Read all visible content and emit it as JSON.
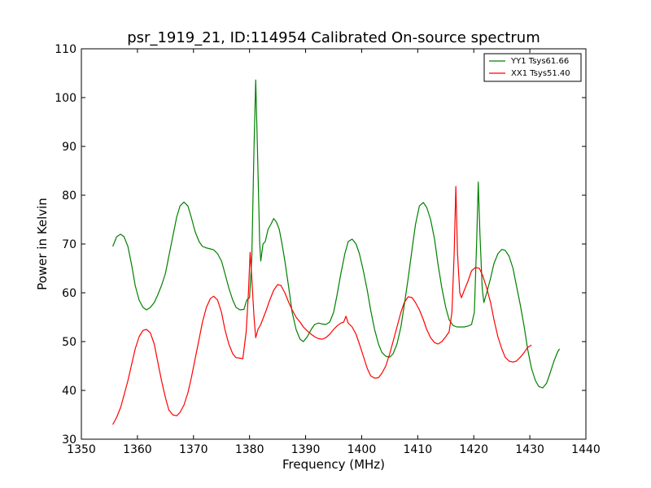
{
  "chart_data": {
    "type": "line",
    "title": "psr_1919_21, ID:114954 Calibrated On-source spectrum",
    "xlabel": "Frequency (MHz)",
    "ylabel": "Power in Kelvin",
    "xlim": [
      1350,
      1440
    ],
    "ylim": [
      30,
      110
    ],
    "xticks": [
      "1350",
      "1360",
      "1370",
      "1380",
      "1390",
      "1400",
      "1410",
      "1420",
      "1430",
      "1440"
    ],
    "yticks": [
      "30",
      "40",
      "50",
      "60",
      "70",
      "80",
      "90",
      "100",
      "110"
    ],
    "grid": false,
    "legend_position": "top-right",
    "series": [
      {
        "name": "YY1 Tsys61.66",
        "color": "#008000",
        "points": [
          [
            1355.6,
            69.5
          ],
          [
            1356.3,
            71.5
          ],
          [
            1357.0,
            72.0
          ],
          [
            1357.6,
            71.5
          ],
          [
            1358.3,
            69.5
          ],
          [
            1359.0,
            65.5
          ],
          [
            1359.6,
            61.5
          ],
          [
            1360.3,
            58.5
          ],
          [
            1361.0,
            57.0
          ],
          [
            1361.6,
            56.5
          ],
          [
            1362.3,
            57.0
          ],
          [
            1363.0,
            58.0
          ],
          [
            1363.6,
            59.5
          ],
          [
            1364.3,
            61.5
          ],
          [
            1365.0,
            64.0
          ],
          [
            1365.6,
            67.5
          ],
          [
            1366.3,
            71.5
          ],
          [
            1367.0,
            75.5
          ],
          [
            1367.6,
            77.8
          ],
          [
            1368.3,
            78.6
          ],
          [
            1369.0,
            77.8
          ],
          [
            1369.6,
            75.5
          ],
          [
            1370.3,
            72.5
          ],
          [
            1371.0,
            70.5
          ],
          [
            1371.6,
            69.5
          ],
          [
            1372.3,
            69.2
          ],
          [
            1373.0,
            69.0
          ],
          [
            1373.6,
            68.8
          ],
          [
            1374.3,
            68.0
          ],
          [
            1375.0,
            66.5
          ],
          [
            1375.6,
            64.0
          ],
          [
            1376.3,
            61.0
          ],
          [
            1377.0,
            58.5
          ],
          [
            1377.6,
            57.0
          ],
          [
            1378.3,
            56.5
          ],
          [
            1379.0,
            56.6
          ],
          [
            1379.5,
            58.5
          ],
          [
            1380.0,
            59.0
          ],
          [
            1380.4,
            67.0
          ],
          [
            1380.8,
            90.0
          ],
          [
            1381.1,
            103.6
          ],
          [
            1381.4,
            90.0
          ],
          [
            1381.8,
            70.5
          ],
          [
            1382.0,
            66.5
          ],
          [
            1382.4,
            70.0
          ],
          [
            1382.8,
            70.5
          ],
          [
            1383.3,
            73.0
          ],
          [
            1383.8,
            74.0
          ],
          [
            1384.3,
            75.2
          ],
          [
            1384.8,
            74.5
          ],
          [
            1385.3,
            73.0
          ],
          [
            1385.8,
            70.0
          ],
          [
            1386.3,
            66.5
          ],
          [
            1387.0,
            61.0
          ],
          [
            1387.6,
            56.0
          ],
          [
            1388.3,
            52.5
          ],
          [
            1389.0,
            50.5
          ],
          [
            1389.6,
            50.0
          ],
          [
            1390.3,
            51.0
          ],
          [
            1391.0,
            52.5
          ],
          [
            1391.6,
            53.5
          ],
          [
            1392.3,
            53.8
          ],
          [
            1393.0,
            53.6
          ],
          [
            1393.6,
            53.5
          ],
          [
            1394.3,
            54.0
          ],
          [
            1395.0,
            56.0
          ],
          [
            1395.6,
            59.5
          ],
          [
            1396.3,
            64.0
          ],
          [
            1397.0,
            68.0
          ],
          [
            1397.6,
            70.5
          ],
          [
            1398.3,
            71.0
          ],
          [
            1399.0,
            70.0
          ],
          [
            1399.6,
            68.0
          ],
          [
            1400.3,
            64.5
          ],
          [
            1401.0,
            60.5
          ],
          [
            1401.6,
            56.5
          ],
          [
            1402.3,
            52.5
          ],
          [
            1403.0,
            49.5
          ],
          [
            1403.6,
            47.8
          ],
          [
            1404.3,
            47.0
          ],
          [
            1405.0,
            46.8
          ],
          [
            1405.6,
            47.5
          ],
          [
            1406.3,
            49.5
          ],
          [
            1407.0,
            53.0
          ],
          [
            1407.6,
            57.5
          ],
          [
            1408.3,
            63.0
          ],
          [
            1409.0,
            69.0
          ],
          [
            1409.6,
            74.0
          ],
          [
            1410.3,
            77.8
          ],
          [
            1411.0,
            78.5
          ],
          [
            1411.6,
            77.5
          ],
          [
            1412.3,
            75.0
          ],
          [
            1413.0,
            71.0
          ],
          [
            1413.6,
            66.0
          ],
          [
            1414.3,
            61.0
          ],
          [
            1415.0,
            57.0
          ],
          [
            1415.6,
            54.5
          ],
          [
            1416.3,
            53.3
          ],
          [
            1417.0,
            53.0
          ],
          [
            1417.6,
            53.0
          ],
          [
            1418.3,
            53.0
          ],
          [
            1419.0,
            53.2
          ],
          [
            1419.6,
            53.5
          ],
          [
            1420.1,
            56.0
          ],
          [
            1420.5,
            70.0
          ],
          [
            1420.8,
            82.7
          ],
          [
            1421.1,
            72.0
          ],
          [
            1421.5,
            61.0
          ],
          [
            1421.8,
            58.0
          ],
          [
            1422.3,
            60.0
          ],
          [
            1423.0,
            63.0
          ],
          [
            1423.6,
            66.0
          ],
          [
            1424.3,
            68.0
          ],
          [
            1425.0,
            68.9
          ],
          [
            1425.6,
            68.7
          ],
          [
            1426.3,
            67.5
          ],
          [
            1427.0,
            65.0
          ],
          [
            1427.6,
            61.5
          ],
          [
            1428.3,
            57.5
          ],
          [
            1429.0,
            53.0
          ],
          [
            1429.6,
            48.5
          ],
          [
            1430.3,
            44.5
          ],
          [
            1431.0,
            42.0
          ],
          [
            1431.6,
            40.8
          ],
          [
            1432.3,
            40.5
          ],
          [
            1433.0,
            41.5
          ],
          [
            1433.6,
            43.5
          ],
          [
            1434.3,
            46.0
          ],
          [
            1435.0,
            48.0
          ],
          [
            1435.3,
            48.5
          ]
        ]
      },
      {
        "name": "XX1 Tsys51.40",
        "color": "#ff0000",
        "points": [
          [
            1355.6,
            33.0
          ],
          [
            1356.3,
            34.5
          ],
          [
            1357.0,
            36.5
          ],
          [
            1357.6,
            39.0
          ],
          [
            1358.3,
            42.0
          ],
          [
            1359.0,
            45.5
          ],
          [
            1359.6,
            48.5
          ],
          [
            1360.3,
            51.0
          ],
          [
            1361.0,
            52.3
          ],
          [
            1361.6,
            52.5
          ],
          [
            1362.3,
            51.8
          ],
          [
            1363.0,
            49.5
          ],
          [
            1363.6,
            46.0
          ],
          [
            1364.3,
            42.0
          ],
          [
            1365.0,
            38.5
          ],
          [
            1365.6,
            36.0
          ],
          [
            1366.3,
            35.0
          ],
          [
            1367.0,
            34.8
          ],
          [
            1367.6,
            35.5
          ],
          [
            1368.3,
            37.0
          ],
          [
            1369.0,
            39.5
          ],
          [
            1369.6,
            42.5
          ],
          [
            1370.3,
            46.5
          ],
          [
            1371.0,
            50.5
          ],
          [
            1371.6,
            54.0
          ],
          [
            1372.3,
            57.0
          ],
          [
            1373.0,
            58.8
          ],
          [
            1373.6,
            59.3
          ],
          [
            1374.3,
            58.5
          ],
          [
            1375.0,
            56.0
          ],
          [
            1375.6,
            52.5
          ],
          [
            1376.3,
            49.5
          ],
          [
            1377.0,
            47.5
          ],
          [
            1377.6,
            46.7
          ],
          [
            1378.3,
            46.6
          ],
          [
            1378.8,
            46.5
          ],
          [
            1379.4,
            52.0
          ],
          [
            1379.8,
            60.0
          ],
          [
            1380.1,
            68.3
          ],
          [
            1380.4,
            63.0
          ],
          [
            1380.8,
            55.0
          ],
          [
            1381.1,
            50.8
          ],
          [
            1381.5,
            52.5
          ],
          [
            1382.0,
            53.5
          ],
          [
            1382.5,
            55.0
          ],
          [
            1383.0,
            56.5
          ],
          [
            1383.6,
            58.5
          ],
          [
            1384.3,
            60.5
          ],
          [
            1385.0,
            61.7
          ],
          [
            1385.6,
            61.5
          ],
          [
            1386.3,
            60.0
          ],
          [
            1387.0,
            58.0
          ],
          [
            1387.6,
            56.5
          ],
          [
            1388.3,
            55.0
          ],
          [
            1389.0,
            54.0
          ],
          [
            1389.6,
            53.0
          ],
          [
            1390.3,
            52.2
          ],
          [
            1391.0,
            51.5
          ],
          [
            1391.6,
            51.0
          ],
          [
            1392.3,
            50.6
          ],
          [
            1393.0,
            50.5
          ],
          [
            1393.6,
            50.8
          ],
          [
            1394.3,
            51.5
          ],
          [
            1395.0,
            52.5
          ],
          [
            1395.6,
            53.2
          ],
          [
            1396.3,
            53.8
          ],
          [
            1396.8,
            54.0
          ],
          [
            1397.2,
            55.2
          ],
          [
            1397.6,
            53.8
          ],
          [
            1398.3,
            53.0
          ],
          [
            1399.0,
            51.5
          ],
          [
            1399.6,
            49.5
          ],
          [
            1400.3,
            47.0
          ],
          [
            1401.0,
            44.5
          ],
          [
            1401.6,
            43.0
          ],
          [
            1402.3,
            42.5
          ],
          [
            1403.0,
            42.6
          ],
          [
            1403.6,
            43.5
          ],
          [
            1404.3,
            45.0
          ],
          [
            1405.0,
            47.5
          ],
          [
            1405.6,
            50.0
          ],
          [
            1406.3,
            53.0
          ],
          [
            1407.0,
            56.0
          ],
          [
            1407.6,
            58.0
          ],
          [
            1408.3,
            59.2
          ],
          [
            1409.0,
            59.0
          ],
          [
            1409.6,
            58.0
          ],
          [
            1410.3,
            56.5
          ],
          [
            1411.0,
            54.5
          ],
          [
            1411.6,
            52.5
          ],
          [
            1412.3,
            50.8
          ],
          [
            1413.0,
            49.8
          ],
          [
            1413.6,
            49.5
          ],
          [
            1414.3,
            50.0
          ],
          [
            1415.0,
            51.0
          ],
          [
            1415.6,
            52.0
          ],
          [
            1416.1,
            56.0
          ],
          [
            1416.5,
            68.0
          ],
          [
            1416.8,
            81.8
          ],
          [
            1417.1,
            68.0
          ],
          [
            1417.5,
            60.0
          ],
          [
            1417.8,
            59.0
          ],
          [
            1418.3,
            60.5
          ],
          [
            1419.0,
            62.5
          ],
          [
            1419.6,
            64.5
          ],
          [
            1420.3,
            65.2
          ],
          [
            1421.0,
            65.0
          ],
          [
            1421.6,
            63.5
          ],
          [
            1422.3,
            61.0
          ],
          [
            1423.0,
            58.0
          ],
          [
            1423.6,
            54.5
          ],
          [
            1424.3,
            51.0
          ],
          [
            1425.0,
            48.5
          ],
          [
            1425.6,
            46.8
          ],
          [
            1426.3,
            46.0
          ],
          [
            1427.0,
            45.8
          ],
          [
            1427.6,
            46.0
          ],
          [
            1428.3,
            46.8
          ],
          [
            1429.0,
            47.8
          ],
          [
            1429.6,
            48.8
          ],
          [
            1430.3,
            49.3
          ]
        ]
      }
    ]
  }
}
